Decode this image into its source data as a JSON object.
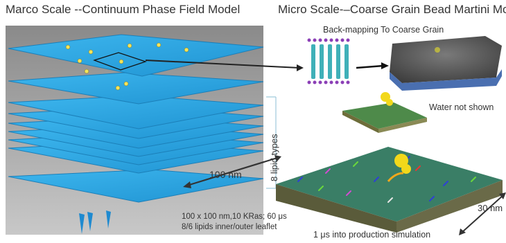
{
  "titles": {
    "left": "Marco Scale --Continuum Phase Field Model",
    "right": "Micro Scale-–Coarse Grain Bead Martini Model"
  },
  "labels": {
    "backmapping": "Back-mapping To Coarse Grain",
    "water": "Water not shown",
    "lipid_types": "8 lipid types",
    "scale_100": "100 nm",
    "specs_line1": "100 x 100 nm,10 KRas; 60 μs",
    "specs_line2": "8/6 lipids inner/outer leaflet",
    "scale_30": "30 nm",
    "production": "1 μs into production simulation"
  },
  "colors": {
    "field_blue": "#2aa9e6",
    "field_edge": "#1f86c2",
    "arrow": "#222222"
  }
}
